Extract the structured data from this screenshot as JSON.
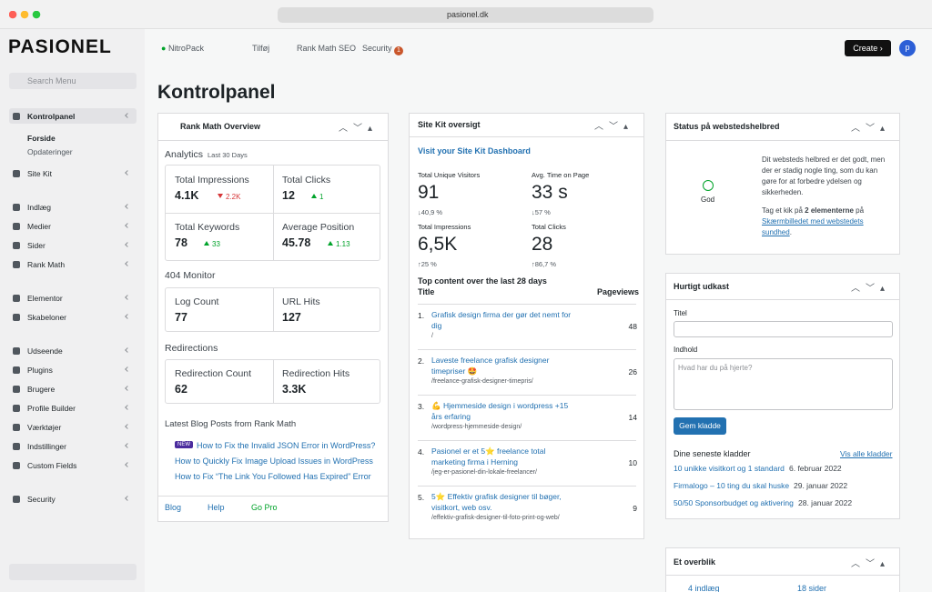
{
  "browser": {
    "url": "pasionel.dk"
  },
  "sidebar": {
    "logo": "PASIONEL",
    "search": "Search Menu",
    "menu": [
      "Kontrolpanel",
      "Site Kit",
      "Indlæg",
      "Medier",
      "Sider",
      "Rank Math",
      "Elementor",
      "Skabeloner",
      "Udseende",
      "Plugins",
      "Brugere",
      "Profile Builder",
      "Værktøjer",
      "Indstillinger",
      "Custom Fields",
      "Security"
    ],
    "submenu": [
      "Forside",
      "Opdateringer"
    ]
  },
  "topbar": {
    "items": [
      "NitroPack",
      "Tilføj",
      "Rank Math SEO",
      "Security"
    ],
    "security_badge": "1",
    "create": "Create ›",
    "avatar": "p"
  },
  "page": {
    "title": "Kontrolpanel"
  },
  "rank_math": {
    "title": "Rank Math Overview",
    "analytics": "Analytics",
    "period": "Last 30 Days",
    "stats": [
      {
        "label": "Total Impressions",
        "value": "4.1K",
        "change": "2.2K"
      },
      {
        "label": "Total Clicks",
        "value": "12",
        "change": "1"
      },
      {
        "label": "Total Keywords",
        "value": "78",
        "change": "33"
      },
      {
        "label": "Average Position",
        "value": "45.78",
        "change": "1.13"
      }
    ],
    "monitor": "404 Monitor",
    "monitor_stats": [
      {
        "label": "Log Count",
        "value": "77"
      },
      {
        "label": "URL Hits",
        "value": "127"
      }
    ],
    "redirections": "Redirections",
    "redirection_stats": [
      {
        "label": "Redirection Count",
        "value": "62"
      },
      {
        "label": "Redirection Hits",
        "value": "3.3K"
      }
    ],
    "posts_title": "Latest Blog Posts from Rank Math",
    "new_badge": "NEW",
    "posts": [
      "How to Fix the Invalid JSON Error in WordPress?",
      "How to Quickly Fix Image Upload Issues in WordPress",
      "How to Fix “The Link You Followed Has Expired” Error"
    ],
    "footer": [
      "Blog",
      "Help",
      "Go Pro"
    ]
  },
  "site_kit": {
    "title": "Site Kit oversigt",
    "link": "Visit your Site Kit Dashboard",
    "stats": [
      {
        "label": "Total Unique Visitors",
        "value": "91",
        "change": "↓40,9 %"
      },
      {
        "label": "Avg. Time on Page",
        "value": "33 s",
        "change": "↓57 %"
      },
      {
        "label": "Total Impressions",
        "value": "6,5K",
        "change": "↑25 %"
      },
      {
        "label": "Total Clicks",
        "value": "28",
        "change": "↑86,7 %"
      }
    ],
    "top_title": "Top content over the last 28 days",
    "col_title": "Title",
    "col_views": "Pageviews",
    "rows": [
      {
        "n": "1.",
        "title": "Grafisk design firma der gør det nemt for dig",
        "path": "/",
        "views": 48
      },
      {
        "n": "2.",
        "title": "Laveste freelance grafisk designer timepriser 🤩",
        "path": "/freelance-grafisk-designer-timepris/",
        "views": 26
      },
      {
        "n": "3.",
        "title": "💪 Hjemmeside design i wordpress +15 års erfaring",
        "path": "/wordpress-hjemmeside-design/",
        "views": 14
      },
      {
        "n": "4.",
        "title": "Pasionel er et 5⭐ freelance total marketing firma i Herning",
        "path": "/jeg-er-pasionel-din-lokale-freelancer/",
        "views": 10
      },
      {
        "n": "5.",
        "title": "5⭐ Effektiv grafisk designer til bøger, visitkort, web osv.",
        "path": "/effektiv-grafisk-designer-til-foto-print-og-web/",
        "views": 9
      }
    ]
  },
  "health": {
    "title": "Status på webstedshelbred",
    "status": "God",
    "text": "Dit websteds helbred er det godt, men der er stadig nogle ting, som du kan gøre for at forbedre ydelsen og sikkerheden.",
    "cta_pre": "Tag et kik på ",
    "cta_bold": "2 elementerne",
    "cta_mid": " på ",
    "cta_link": "Skærmbilledet med webstedets sundhed",
    "cta_end": "."
  },
  "draft": {
    "title": "Hurtigt udkast",
    "title_label": "Titel",
    "content_label": "Indhold",
    "placeholder": "Hvad har du på hjerte?",
    "button": "Gem kladde",
    "recent": "Dine seneste kladder",
    "view_all": "Vis alle kladder",
    "drafts": [
      {
        "title": "10 unikke visitkort og 1 standard",
        "date": "6. februar 2022"
      },
      {
        "title": "Firmalogo – 10 ting du skal huske",
        "date": "29. januar 2022"
      },
      {
        "title": "50/50 Sponsorbudget og aktivering",
        "date": "28. januar 2022"
      }
    ]
  },
  "glance": {
    "title": "Et overblik",
    "items": [
      "4 indlæg",
      "18 sider"
    ]
  }
}
